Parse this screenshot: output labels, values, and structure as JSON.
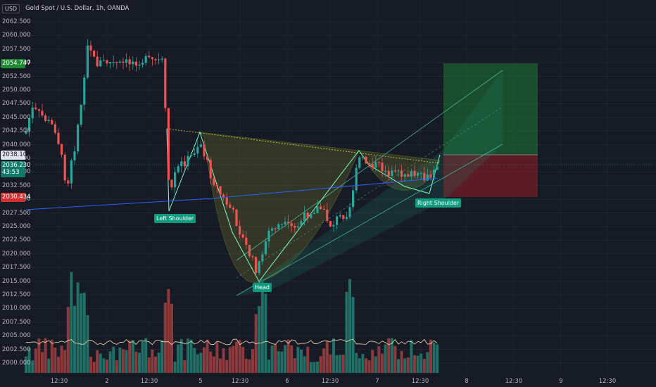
{
  "header": {
    "currency_button": "USD",
    "symbol_title": "Gold Spot / U.S. Dollar, 1h, OANDA"
  },
  "price_axis": {
    "labels": [
      "2062.500",
      "2060.000",
      "2057.500",
      "2055.000",
      "2052.500",
      "2050.000",
      "2047.500",
      "2045.000",
      "2042.500",
      "2040.000",
      "2037.500",
      "2035.000",
      "2032.500",
      "2030.000",
      "2027.500",
      "2025.000",
      "2022.500",
      "2020.000",
      "2017.500",
      "2015.000",
      "2012.500",
      "2010.000",
      "2007.500",
      "2005.000",
      "2002.500",
      "2000.000"
    ],
    "tags": {
      "target_price": "2054.747",
      "entry_price": "2038.100",
      "current_price": "2036.230",
      "countdown": "43:53",
      "stop_price": "2030.434"
    }
  },
  "time_axis": [
    "12:30",
    "2",
    "12:30",
    "5",
    "12:30",
    "6",
    "12:30",
    "7",
    "12:30",
    "8",
    "12:30",
    "9",
    "12:30"
  ],
  "annotations": {
    "left_shoulder": "Left Shoulder",
    "head": "Head",
    "right_shoulder": "Right Shoulder"
  },
  "colors": {
    "background": "#161a25",
    "up_candle": "#26a69a",
    "down_candle": "#ef5350",
    "ma_line": "#2962ff",
    "target_zone": "#1b5e20",
    "stop_zone": "#b71c1c",
    "pattern_green": "#00e676",
    "pattern_yellow": "#cddc39"
  }
}
